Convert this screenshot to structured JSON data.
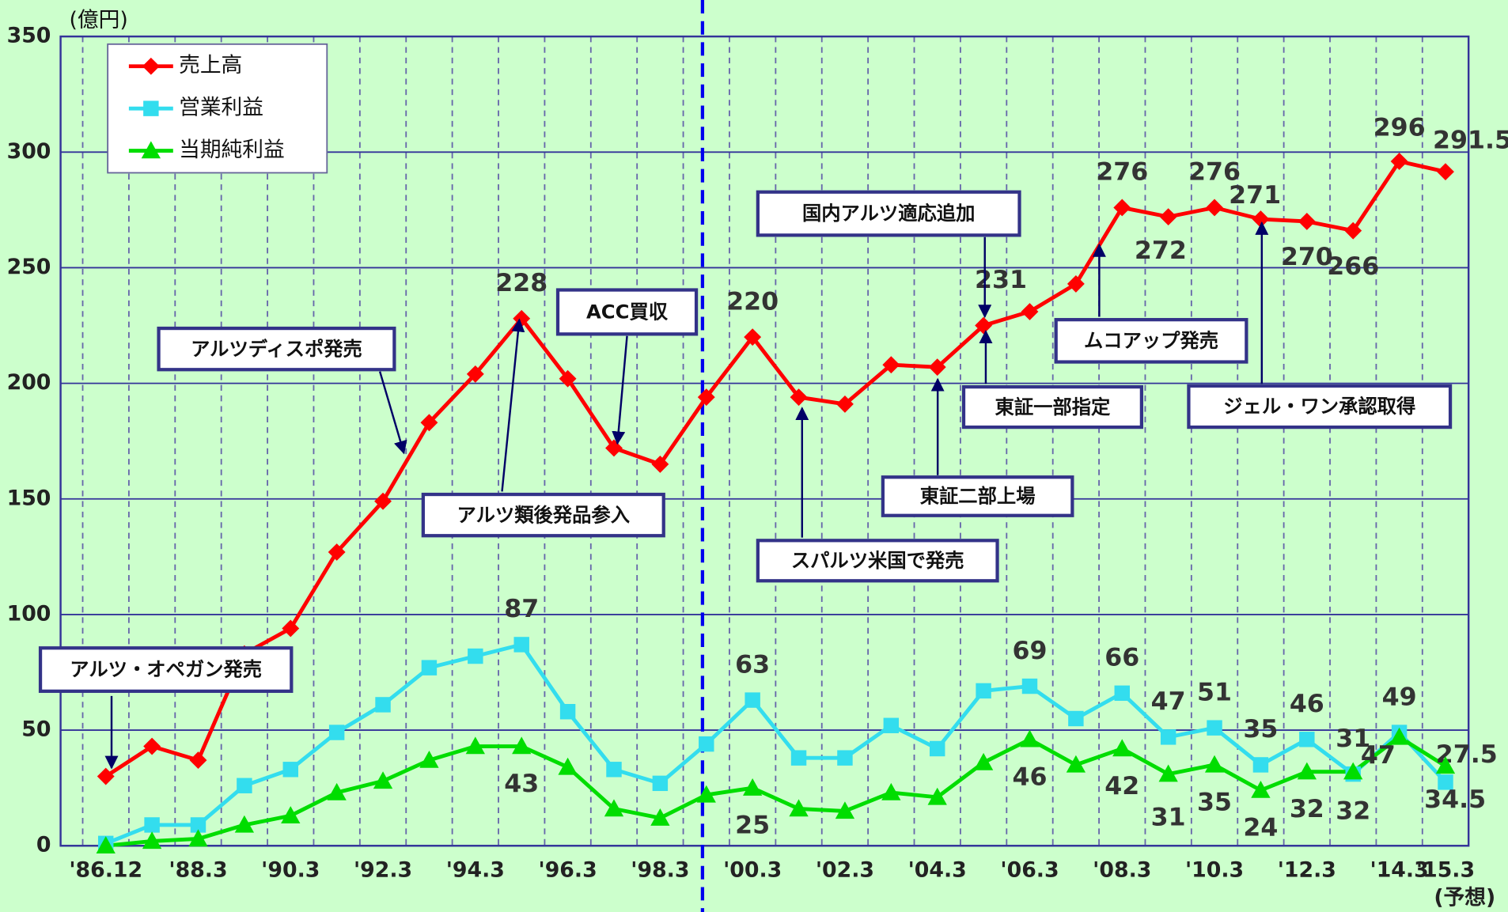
{
  "chart_data": {
    "type": "line",
    "y_unit_label": "(億円)",
    "x_note": "(予想)",
    "categories": [
      "'86.12",
      null,
      "'88.3",
      null,
      "'90.3",
      null,
      "'92.3",
      null,
      "'94.3",
      null,
      "'96.3",
      null,
      "'98.3",
      null,
      "'00.3",
      null,
      "'02.3",
      null,
      "'04.3",
      null,
      "'06.3",
      null,
      "'08.3",
      null,
      "'10.3",
      null,
      "'12.3",
      null,
      "'14.3",
      "'15.3"
    ],
    "series": [
      {
        "name": "売上高",
        "color": "#ff0000",
        "marker": "diamond",
        "values": [
          30,
          43,
          37,
          83,
          94,
          127,
          149,
          183,
          204,
          228,
          202,
          172,
          165,
          194,
          220,
          194,
          191,
          208,
          207,
          225,
          231,
          243,
          276,
          272,
          276,
          271,
          270,
          266,
          296,
          291.5
        ],
        "value_labels": [
          null,
          null,
          null,
          null,
          null,
          null,
          null,
          null,
          null,
          "228",
          null,
          null,
          null,
          null,
          "220",
          null,
          null,
          null,
          null,
          null,
          "231",
          null,
          "276",
          "272",
          "276",
          "271",
          "270",
          "266",
          "296",
          "291.5"
        ]
      },
      {
        "name": "営業利益",
        "color": "#33ddee",
        "marker": "square",
        "values": [
          1,
          9,
          9,
          26,
          33,
          49,
          61,
          77,
          82,
          87,
          58,
          33,
          27,
          44,
          63,
          38,
          38,
          52,
          42,
          67,
          69,
          55,
          66,
          47,
          51,
          35,
          46,
          31,
          49,
          27.5
        ],
        "value_labels": [
          null,
          null,
          null,
          null,
          null,
          null,
          null,
          null,
          null,
          "87",
          null,
          null,
          null,
          null,
          "63",
          null,
          null,
          null,
          null,
          null,
          "69",
          null,
          "66",
          "47",
          "51",
          "35",
          "46",
          "31",
          "49",
          "27.5"
        ]
      },
      {
        "name": "当期純利益",
        "color": "#00dd00",
        "marker": "triangle",
        "values": [
          0,
          2,
          3,
          9,
          13,
          23,
          28,
          37,
          43,
          43,
          34,
          16,
          12,
          22,
          25,
          16,
          15,
          23,
          21,
          36,
          46,
          35,
          42,
          31,
          35,
          24,
          32,
          32,
          47,
          34.5
        ],
        "value_labels": [
          null,
          null,
          null,
          null,
          null,
          null,
          null,
          null,
          null,
          "43",
          null,
          null,
          null,
          null,
          "25",
          null,
          null,
          null,
          null,
          null,
          "46",
          null,
          "42",
          "31",
          "35",
          "24",
          "32",
          "32",
          "47",
          "34.5"
        ]
      }
    ],
    "ylim": [
      0,
      350
    ],
    "yticks": [
      0,
      50,
      100,
      150,
      200,
      250,
      300,
      350
    ],
    "grid": true,
    "legend": "upper left",
    "annotations": [
      {
        "text": "アルツ・オペガン発売"
      },
      {
        "text": "アルツディスポ発売"
      },
      {
        "text": "アルツ類後発品参入"
      },
      {
        "text": "ACC買収"
      },
      {
        "text": "国内アルツ適応追加"
      },
      {
        "text": "スパルツ米国で発売"
      },
      {
        "text": "東証二部上場"
      },
      {
        "text": "東証一部指定"
      },
      {
        "text": "ムコアップ発売"
      },
      {
        "text": "ジェル・ワン承認取得"
      }
    ]
  }
}
